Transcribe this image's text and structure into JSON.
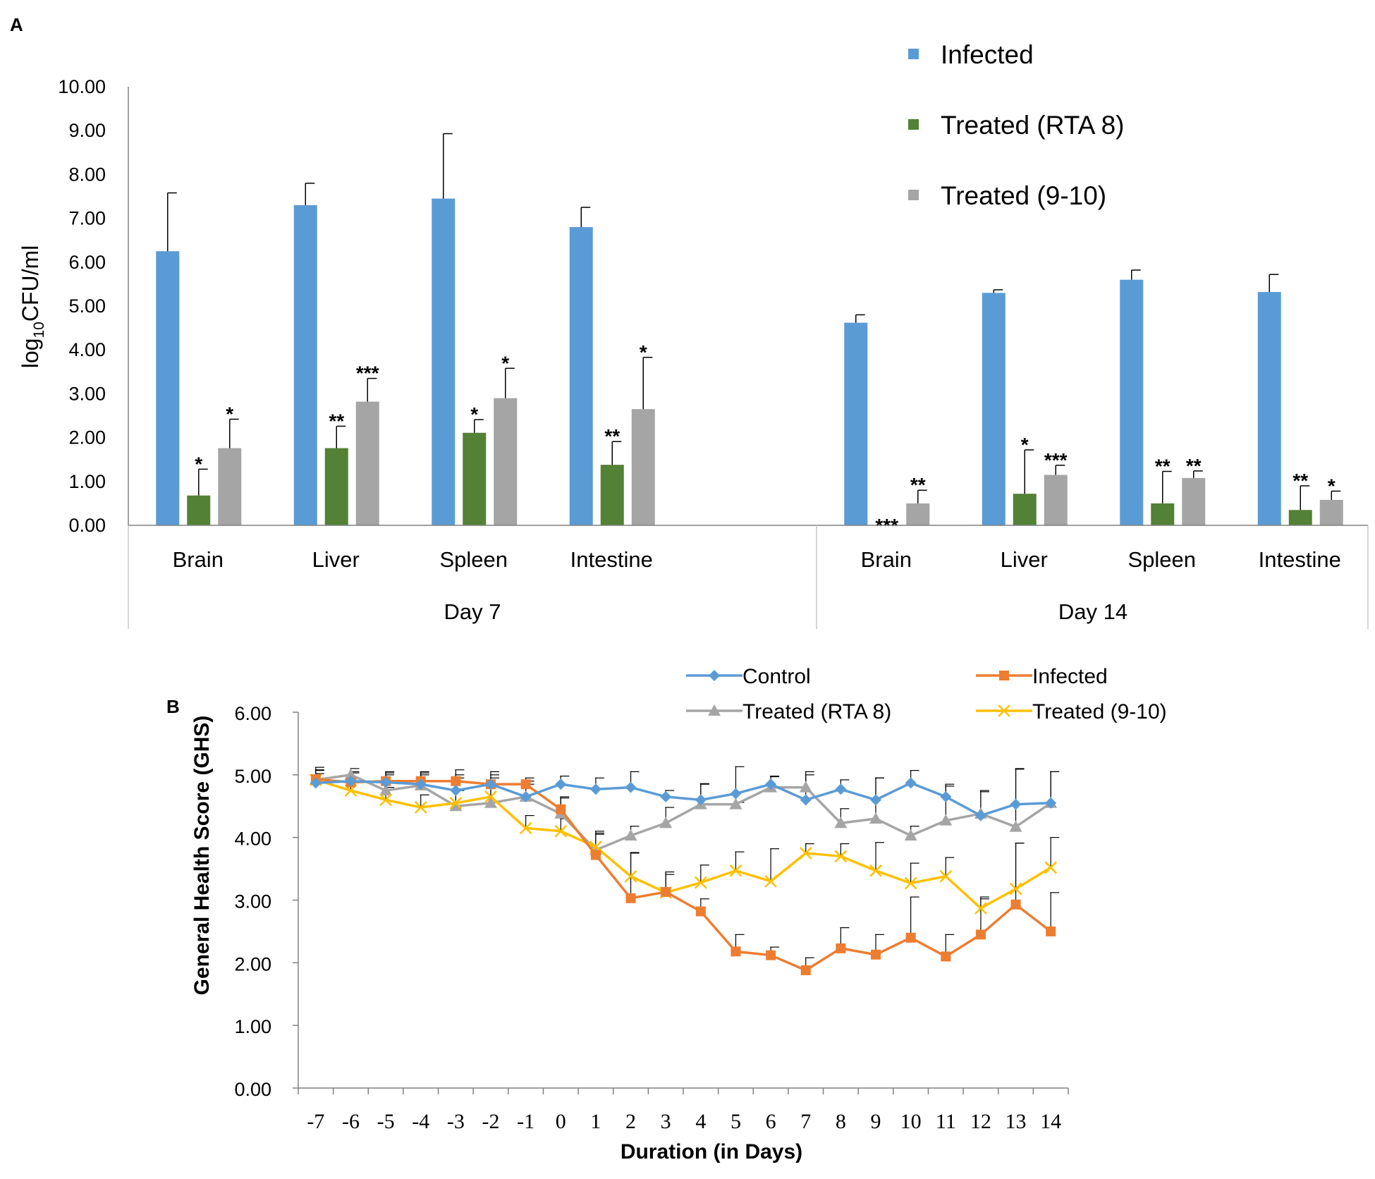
{
  "panels": {
    "a": "A",
    "b": "B"
  },
  "chart_data": [
    {
      "type": "bar",
      "panel": "A",
      "ylabel_prefix": "log",
      "ylabel_sub": "10",
      "ylabel_suffix": "CFU/ml",
      "ylim": [
        0,
        10
      ],
      "yticks": [
        "0.00",
        "1.00",
        "2.00",
        "3.00",
        "4.00",
        "5.00",
        "6.00",
        "7.00",
        "8.00",
        "9.00",
        "10.00"
      ],
      "groups": [
        {
          "label": "Day 7",
          "categories": [
            "Brain",
            "Liver",
            "Spleen",
            "Intestine"
          ]
        },
        {
          "label": "Day 14",
          "categories": [
            "Brain",
            "Liver",
            "Spleen",
            "Intestine"
          ]
        }
      ],
      "series": [
        {
          "name": "Infected",
          "color": "#5B9BD5",
          "values": [
            6.25,
            7.3,
            7.45,
            6.8,
            4.62,
            5.3,
            5.6,
            5.32
          ],
          "errors": [
            1.33,
            0.5,
            1.48,
            0.45,
            0.18,
            0.07,
            0.22,
            0.4
          ],
          "sig": [
            "",
            "",
            "",
            "",
            "",
            "",
            "",
            ""
          ]
        },
        {
          "name": "Treated (RTA 8)",
          "color": "#538135",
          "values": [
            0.68,
            1.76,
            2.11,
            1.38,
            0.0,
            0.72,
            0.5,
            0.35
          ],
          "errors": [
            0.6,
            0.5,
            0.3,
            0.53,
            0.0,
            1.0,
            0.73,
            0.55
          ],
          "sig": [
            "*",
            "**",
            "*",
            "**",
            "***",
            "*",
            "**",
            "**"
          ]
        },
        {
          "name": "Treated (9-10)",
          "color": "#A5A5A5",
          "values": [
            1.76,
            2.82,
            2.9,
            2.65,
            0.5,
            1.15,
            1.08,
            0.58
          ],
          "errors": [
            0.66,
            0.53,
            0.68,
            1.18,
            0.3,
            0.22,
            0.16,
            0.2
          ],
          "sig": [
            "*",
            "***",
            "*",
            "*",
            "**",
            "***",
            "**",
            "*"
          ]
        }
      ]
    },
    {
      "type": "line",
      "panel": "B",
      "ylabel": "General Health Score (GHS)",
      "xlabel": "Duration (in Days)",
      "ylim": [
        0,
        6
      ],
      "yticks": [
        "0.00",
        "1.00",
        "2.00",
        "3.00",
        "4.00",
        "5.00",
        "6.00"
      ],
      "x": [
        "-7",
        "-6",
        "-5",
        "-4",
        "-3",
        "-2",
        "-1",
        "0",
        "1",
        "2",
        "3",
        "4",
        "5",
        "6",
        "7",
        "8",
        "9",
        "10",
        "11",
        "12",
        "13",
        "14"
      ],
      "series": [
        {
          "name": "Control",
          "color": "#5B9BD5",
          "marker": "diamond",
          "values": [
            4.87,
            4.9,
            4.88,
            4.85,
            4.75,
            4.85,
            4.65,
            4.85,
            4.77,
            4.8,
            4.65,
            4.6,
            4.7,
            4.85,
            4.6,
            4.77,
            4.6,
            4.87,
            4.65,
            4.35,
            4.53,
            4.55
          ],
          "errors": [
            0.15,
            0.15,
            0.15,
            0.15,
            0.2,
            0.15,
            0.2,
            0.13,
            0.18,
            0.25,
            0.1,
            0.25,
            0.43,
            0.12,
            0.45,
            0.15,
            0.35,
            0.2,
            0.2,
            0.4,
            0.57,
            0.5
          ]
        },
        {
          "name": "Infected",
          "color": "#ED7D31",
          "marker": "square",
          "values": [
            4.93,
            4.88,
            4.9,
            4.9,
            4.9,
            4.85,
            4.85,
            4.45,
            3.72,
            3.03,
            3.13,
            2.82,
            2.18,
            2.12,
            1.88,
            2.23,
            2.13,
            2.4,
            2.1,
            2.45,
            2.93,
            2.5
          ],
          "errors": [
            0.15,
            0.15,
            0.15,
            0.15,
            0.18,
            0.2,
            0.1,
            0.2,
            0.35,
            0.72,
            0.28,
            0.2,
            0.27,
            0.13,
            0.2,
            0.33,
            0.32,
            0.65,
            0.35,
            0.6,
            0.98,
            0.62
          ]
        },
        {
          "name": "Treated (RTA 8)",
          "color": "#A5A5A5",
          "marker": "triangle",
          "values": [
            4.92,
            5.0,
            4.75,
            4.83,
            4.5,
            4.55,
            4.65,
            4.38,
            3.8,
            4.03,
            4.23,
            4.53,
            4.53,
            4.8,
            4.8,
            4.23,
            4.3,
            4.03,
            4.27,
            4.38,
            4.17,
            4.55
          ],
          "errors": [
            0.15,
            0.1,
            0.25,
            0.2,
            0.5,
            0.4,
            0.25,
            0.25,
            0.3,
            0.15,
            0.25,
            0.33,
            0.03,
            0.18,
            0.2,
            0.23,
            0.65,
            0.15,
            0.55,
            0.35,
            0.92,
            0.5
          ]
        },
        {
          "name": "Treated (9-10)",
          "color": "#FFC000",
          "marker": "x",
          "values": [
            4.92,
            4.75,
            4.6,
            4.48,
            4.55,
            4.65,
            4.15,
            4.1,
            3.85,
            3.38,
            3.12,
            3.28,
            3.47,
            3.3,
            3.75,
            3.7,
            3.47,
            3.27,
            3.38,
            2.87,
            3.18,
            3.52
          ],
          "errors": [
            0.2,
            0.2,
            0.2,
            0.2,
            0.2,
            0.2,
            0.2,
            0.2,
            0.2,
            0.38,
            0.33,
            0.28,
            0.3,
            0.52,
            0.15,
            0.2,
            0.45,
            0.32,
            0.3,
            0.15,
            0.73,
            0.48
          ]
        }
      ]
    }
  ]
}
